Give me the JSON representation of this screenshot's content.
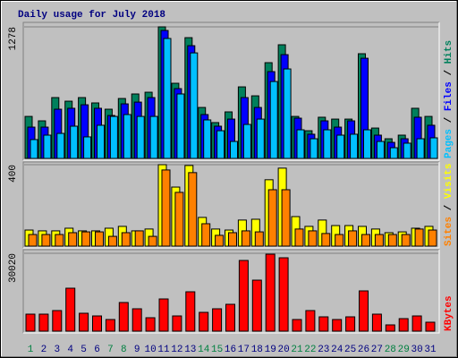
{
  "chart_data": [
    {
      "type": "bar",
      "title": "Daily usage for July 2018",
      "legend_separator": " / ",
      "ylim": [
        0,
        1278
      ],
      "yticks": [
        1278
      ],
      "series": [
        {
          "name": "Hits",
          "color": "#00805c",
          "values": [
            408,
            365,
            591,
            556,
            591,
            539,
            478,
            582,
            626,
            643,
            1278,
            730,
            1173,
            495,
            348,
            452,
            695,
            608,
            930,
            1104,
            408,
            269,
            400,
            382,
            382,
            1017,
            295,
            191,
            226,
            487,
            408
          ]
        },
        {
          "name": "Files",
          "color": "#0000ff",
          "values": [
            304,
            304,
            478,
            487,
            521,
            487,
            417,
            530,
            547,
            591,
            1243,
            678,
            1095,
            426,
            313,
            382,
            591,
            495,
            843,
            1008,
            391,
            235,
            365,
            304,
            365,
            973,
            226,
            156,
            191,
            400,
            322
          ]
        },
        {
          "name": "Pages",
          "color": "#00c0ff",
          "values": [
            183,
            226,
            243,
            313,
            209,
            322,
            408,
            426,
            408,
            408,
            1165,
            626,
            1025,
            374,
            269,
            165,
            330,
            382,
            747,
            869,
            278,
            191,
            278,
            226,
            235,
            278,
            165,
            104,
            148,
            191,
            200
          ]
        }
      ]
    },
    {
      "type": "bar",
      "ylim": [
        0,
        400
      ],
      "yticks": [
        400
      ],
      "series": [
        {
          "name": "Visits",
          "color": "#ffff00",
          "values": [
            79,
            75,
            75,
            88,
            75,
            75,
            88,
            97,
            75,
            84,
            400,
            290,
            396,
            141,
            84,
            79,
            128,
            132,
            326,
            383,
            145,
            97,
            128,
            101,
            101,
            97,
            84,
            66,
            70,
            88,
            97
          ]
        },
        {
          "name": "Sites",
          "color": "#ff8000",
          "values": [
            57,
            57,
            57,
            66,
            70,
            70,
            48,
            66,
            75,
            48,
            374,
            264,
            361,
            110,
            53,
            66,
            75,
            70,
            277,
            277,
            84,
            75,
            62,
            57,
            75,
            57,
            57,
            57,
            57,
            84,
            79
          ]
        }
      ]
    },
    {
      "type": "bar",
      "ylim": [
        0,
        30020
      ],
      "yticks": [
        30020
      ],
      "categories": [
        "1",
        "2",
        "3",
        "4",
        "5",
        "6",
        "7",
        "8",
        "9",
        "10",
        "11",
        "12",
        "13",
        "14",
        "15",
        "16",
        "17",
        "18",
        "19",
        "20",
        "21",
        "22",
        "23",
        "24",
        "25",
        "26",
        "27",
        "28",
        "29",
        "30",
        "31"
      ],
      "category_colors": [
        "#008040",
        "#000080",
        "#000080",
        "#000080",
        "#000080",
        "#000080",
        "#008040",
        "#008040",
        "#000080",
        "#000080",
        "#000080",
        "#000080",
        "#000080",
        "#008040",
        "#008040",
        "#000080",
        "#000080",
        "#000080",
        "#000080",
        "#000080",
        "#008040",
        "#008040",
        "#000080",
        "#000080",
        "#000080",
        "#000080",
        "#000080",
        "#008040",
        "#008040",
        "#000080",
        "#000080"
      ],
      "series": [
        {
          "name": "KBytes",
          "color": "#ff0000",
          "values": [
            6556,
            6556,
            7936,
            16560,
            6900,
            5865,
            4485,
            11040,
            8625,
            5175,
            12420,
            5865,
            15180,
            7245,
            8625,
            10350,
            27255,
            19665,
            29670,
            28290,
            4485,
            7936,
            5520,
            4485,
            5520,
            15525,
            6556,
            2415,
            4830,
            5865,
            3450
          ]
        }
      ]
    }
  ]
}
